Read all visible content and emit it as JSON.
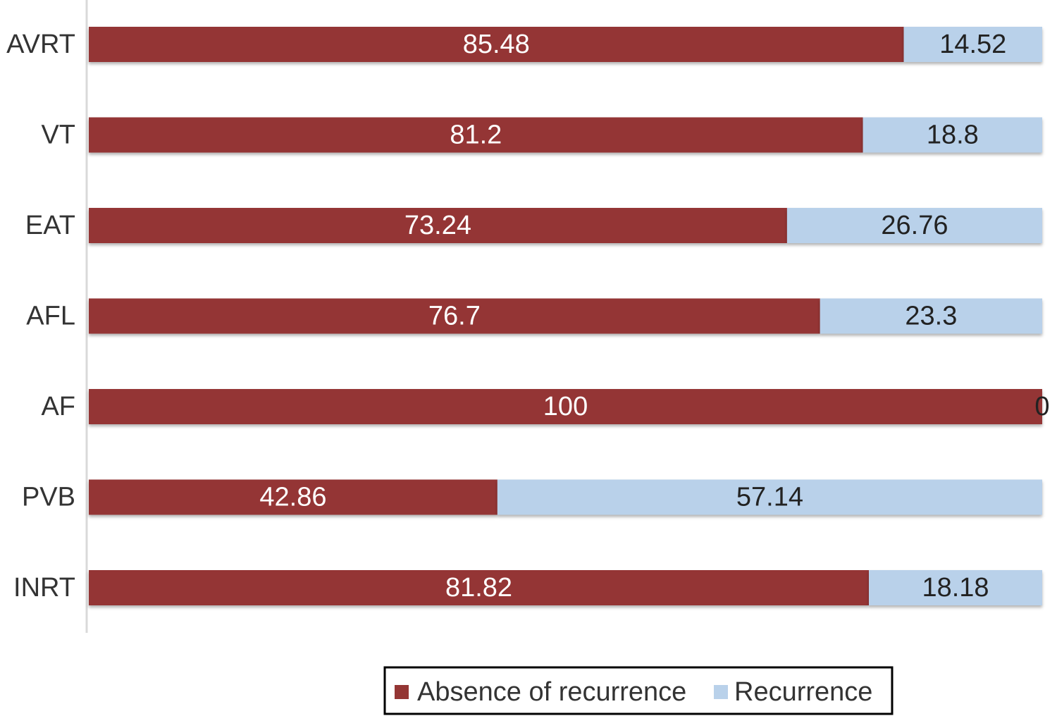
{
  "chart_data": {
    "type": "stacked-bar-horizontal",
    "categories": [
      "AVRT",
      "VT",
      "EAT",
      "AFL",
      "AF",
      "PVB",
      "INRT"
    ],
    "series": [
      {
        "name": "Absence of recurrence",
        "color": "#943634",
        "values": [
          85.48,
          81.2,
          73.24,
          76.7,
          100,
          42.86,
          81.82
        ]
      },
      {
        "name": "Recurrence",
        "color": "#b9d1ea",
        "values": [
          14.52,
          18.8,
          26.76,
          23.3,
          0,
          57.14,
          18.18
        ]
      }
    ],
    "xlim": [
      0,
      100
    ],
    "legend": "bottom"
  }
}
